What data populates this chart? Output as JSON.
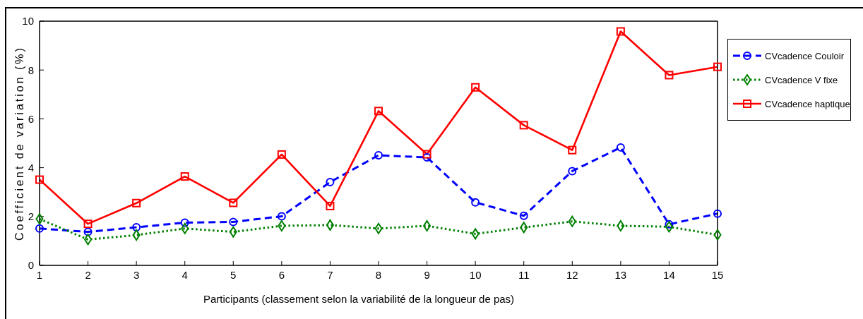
{
  "chart_data": {
    "type": "line",
    "xlabel": "Participants (classement selon la variabilité de la longueur de pas)",
    "ylabel": "Coefficient de variation (%)",
    "x": [
      1,
      2,
      3,
      4,
      5,
      6,
      7,
      8,
      9,
      10,
      11,
      12,
      13,
      14,
      15
    ],
    "xlim": [
      1,
      15
    ],
    "xticks": [
      1,
      2,
      3,
      4,
      5,
      6,
      7,
      8,
      9,
      10,
      11,
      12,
      13,
      14,
      15
    ],
    "ylim": [
      0,
      10
    ],
    "yticks": [
      0,
      2,
      4,
      6,
      8,
      10
    ],
    "legend": "right",
    "series": [
      {
        "name": "CVcadence Couloir",
        "color": "#0000ff",
        "marker": "circle",
        "line_style": "dashed",
        "values": [
          1.51,
          1.37,
          1.56,
          1.75,
          1.78,
          2.01,
          3.41,
          4.51,
          4.42,
          2.58,
          2.03,
          3.86,
          4.83,
          1.68,
          2.12
        ]
      },
      {
        "name": "CVcadence V fixe",
        "color": "#008000",
        "marker": "diamond",
        "line_style": "dotted",
        "values": [
          1.9,
          1.06,
          1.24,
          1.51,
          1.37,
          1.62,
          1.65,
          1.51,
          1.62,
          1.29,
          1.55,
          1.8,
          1.62,
          1.58,
          1.25
        ]
      },
      {
        "name": "CVcadence haptique",
        "color": "#ff0000",
        "marker": "square",
        "line_style": "solid",
        "values": [
          3.51,
          1.7,
          2.55,
          3.64,
          2.56,
          4.54,
          2.43,
          6.32,
          4.55,
          7.29,
          5.74,
          4.72,
          9.58,
          7.79,
          8.13
        ]
      }
    ]
  }
}
